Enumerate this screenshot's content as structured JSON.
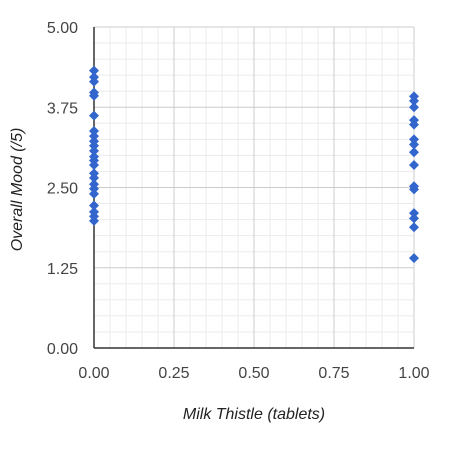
{
  "chart_data": {
    "type": "scatter",
    "xlabel": "Milk Thistle (tablets)",
    "ylabel": "Overall Mood (/5)",
    "xlim": [
      0,
      1
    ],
    "ylim": [
      0,
      5
    ],
    "x_ticks": [
      "0.00",
      "0.25",
      "0.50",
      "0.75",
      "1.00"
    ],
    "y_ticks": [
      "0.00",
      "1.25",
      "2.50",
      "3.75",
      "5.00"
    ],
    "grid": true,
    "legend": "none",
    "marker": "diamond",
    "colors": {
      "marker": "#3366cc",
      "major_grid": "#cccccc",
      "minor_grid": "#ebebeb",
      "axis": "#333333"
    },
    "series": [
      {
        "points": [
          [
            0,
            4.32
          ],
          [
            0,
            4.22
          ],
          [
            0,
            4.15
          ],
          [
            0,
            3.98
          ],
          [
            0,
            3.93
          ],
          [
            0,
            3.62
          ],
          [
            0,
            3.38
          ],
          [
            0,
            3.3
          ],
          [
            0,
            3.22
          ],
          [
            0,
            3.15
          ],
          [
            0,
            3.07
          ],
          [
            0,
            2.98
          ],
          [
            0,
            2.92
          ],
          [
            0,
            2.85
          ],
          [
            0,
            2.72
          ],
          [
            0,
            2.65
          ],
          [
            0,
            2.55
          ],
          [
            0,
            2.48
          ],
          [
            0,
            2.4
          ],
          [
            0,
            2.22
          ],
          [
            0,
            2.12
          ],
          [
            0,
            2.05
          ],
          [
            0,
            1.98
          ],
          [
            1,
            3.92
          ],
          [
            1,
            3.85
          ],
          [
            1,
            3.75
          ],
          [
            1,
            3.55
          ],
          [
            1,
            3.48
          ],
          [
            1,
            3.25
          ],
          [
            1,
            3.17
          ],
          [
            1,
            3.05
          ],
          [
            1,
            2.85
          ],
          [
            1,
            2.52
          ],
          [
            1,
            2.47
          ],
          [
            1,
            2.1
          ],
          [
            1,
            2.02
          ],
          [
            1,
            1.88
          ],
          [
            1,
            1.4
          ]
        ]
      }
    ]
  }
}
